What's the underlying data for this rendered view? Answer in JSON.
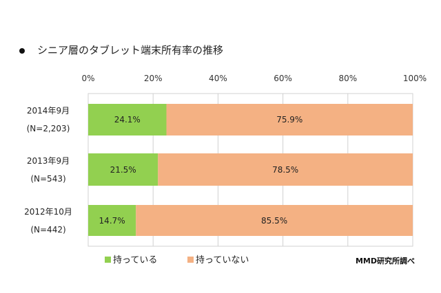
{
  "chart_data": {
    "type": "bar",
    "orientation": "horizontal",
    "stacked": true,
    "title": "シニア層のタブレット端末所有率の推移",
    "categories": [
      [
        "2014年9月",
        "(N=2,203)"
      ],
      [
        "2013年9月",
        "(N=543)"
      ],
      [
        "2012年10月",
        "(N=442)"
      ]
    ],
    "series": [
      {
        "name": "持っている",
        "values": [
          24.1,
          21.5,
          14.7
        ],
        "labels": [
          "24.1%",
          "21.5%",
          "14.7%"
        ],
        "color": "#92d050"
      },
      {
        "name": "持っていない",
        "values": [
          75.9,
          78.5,
          85.5
        ],
        "labels": [
          "75.9%",
          "78.5%",
          "85.5%"
        ],
        "color": "#f4b183"
      }
    ],
    "xlim": [
      0,
      100
    ],
    "xticks": [
      "0%",
      "20%",
      "40%",
      "60%",
      "80%",
      "100%"
    ],
    "xaxis_position": "top",
    "grid": true,
    "legend_placement": "bottom",
    "source": "MMD研究所調べ"
  }
}
